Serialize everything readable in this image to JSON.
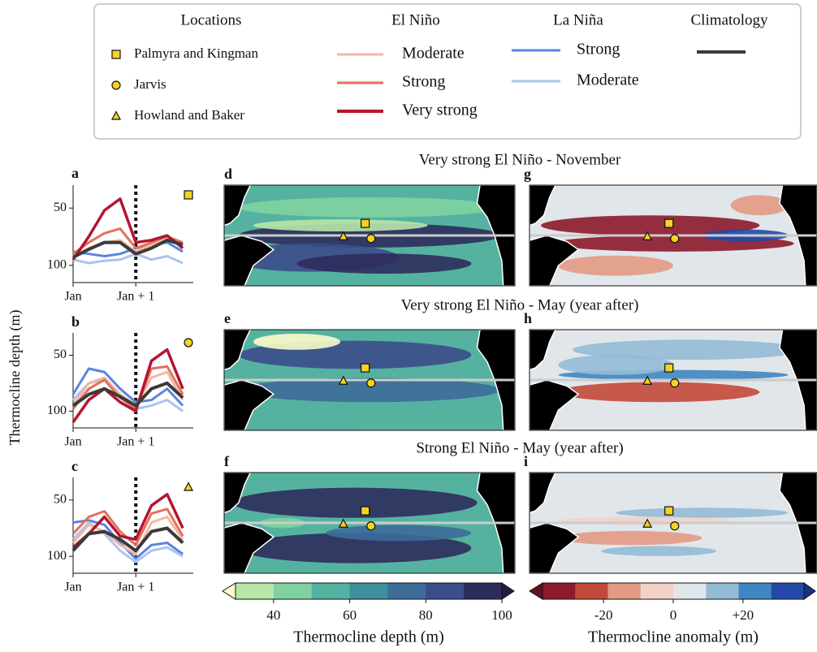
{
  "legend": {
    "locations_title": "Locations",
    "locations": [
      "Palmyra and Kingman",
      "Jarvis",
      "Howland and Baker"
    ],
    "el_nino_title": "El Niño",
    "el_nino": [
      {
        "name": "Moderate",
        "color": "#f2b8a0"
      },
      {
        "name": "Strong",
        "color": "#e2705a"
      },
      {
        "name": "Very strong",
        "color": "#b3162e"
      }
    ],
    "la_nina_title": "La Niña",
    "la_nina": [
      {
        "name": "Strong",
        "color": "#5a84df"
      },
      {
        "name": "Moderate",
        "color": "#a9c4f2"
      }
    ],
    "climatology_title": "Climatology",
    "climatology_color": "#3a3a3a"
  },
  "y_axis_label": "Thermocline depth (m)",
  "chart_data": [
    {
      "type": "line",
      "letter": "a",
      "marker": "square",
      "x": [
        0,
        3,
        6,
        9,
        12,
        15,
        18,
        21
      ],
      "xlim": [
        0,
        23
      ],
      "xticks": [
        {
          "value": 0,
          "label": "Jan"
        },
        {
          "value": 12,
          "label": "Jan + 1"
        }
      ],
      "ylim": [
        30,
        115
      ],
      "y_inverted": true,
      "yticks": [
        50,
        100
      ],
      "series": [
        {
          "values": [
            92,
            85,
            80,
            78,
            88,
            82,
            78,
            82
          ]
        },
        {
          "values": [
            90,
            80,
            72,
            68,
            85,
            80,
            75,
            80
          ]
        },
        {
          "values": [
            95,
            75,
            52,
            42,
            80,
            78,
            74,
            85
          ]
        },
        {
          "values": [
            88,
            90,
            92,
            90,
            85,
            82,
            80,
            88
          ]
        },
        {
          "values": [
            95,
            98,
            96,
            95,
            90,
            95,
            92,
            98
          ]
        },
        {
          "values": [
            93,
            86,
            80,
            80,
            90,
            85,
            78,
            82
          ]
        }
      ]
    },
    {
      "type": "line",
      "letter": "b",
      "marker": "circle",
      "x": [
        0,
        3,
        6,
        9,
        12,
        15,
        18,
        21
      ],
      "xlim": [
        0,
        23
      ],
      "xticks": [
        {
          "value": 0,
          "label": "Jan"
        },
        {
          "value": 12,
          "label": "Jan + 1"
        }
      ],
      "ylim": [
        30,
        115
      ],
      "y_inverted": true,
      "yticks": [
        50,
        100
      ],
      "series": [
        {
          "values": [
            95,
            75,
            70,
            85,
            95,
            70,
            65,
            90
          ]
        },
        {
          "values": [
            98,
            80,
            72,
            88,
            98,
            62,
            60,
            85
          ]
        },
        {
          "values": [
            110,
            90,
            80,
            92,
            100,
            55,
            45,
            80
          ]
        },
        {
          "values": [
            85,
            62,
            65,
            80,
            92,
            90,
            80,
            95
          ]
        },
        {
          "values": [
            90,
            75,
            72,
            88,
            98,
            95,
            90,
            100
          ]
        },
        {
          "values": [
            95,
            85,
            80,
            87,
            95,
            80,
            75,
            88
          ]
        }
      ]
    },
    {
      "type": "line",
      "letter": "c",
      "marker": "triangle",
      "x": [
        0,
        3,
        6,
        9,
        12,
        15,
        18,
        21
      ],
      "xlim": [
        0,
        23
      ],
      "xticks": [
        {
          "value": 0,
          "label": "Jan"
        },
        {
          "value": 12,
          "label": "Jan + 1"
        }
      ],
      "ylim": [
        30,
        115
      ],
      "y_inverted": true,
      "yticks": [
        50,
        100
      ],
      "series": [
        {
          "values": [
            88,
            72,
            78,
            90,
            98,
            70,
            65,
            85
          ]
        },
        {
          "values": [
            80,
            65,
            60,
            78,
            90,
            62,
            58,
            82
          ]
        },
        {
          "values": [
            92,
            80,
            65,
            82,
            85,
            55,
            45,
            75
          ]
        },
        {
          "values": [
            70,
            68,
            72,
            88,
            102,
            90,
            88,
            98
          ]
        },
        {
          "values": [
            85,
            70,
            80,
            95,
            105,
            95,
            92,
            100
          ]
        },
        {
          "values": [
            95,
            80,
            78,
            85,
            95,
            78,
            75,
            88
          ]
        }
      ]
    }
  ],
  "maps": {
    "row_titles": [
      "Very strong El Niño - November",
      "Very strong El Niño - May (year after)",
      "Strong El Niño - May (year after)"
    ],
    "depth_letters": [
      "d",
      "e",
      "f"
    ],
    "anomaly_letters": [
      "g",
      "h",
      "i"
    ]
  },
  "colorbars": [
    {
      "label": "Thermocline depth (m)",
      "lim": [
        30,
        100
      ],
      "ticks": [
        40,
        60,
        80,
        100
      ],
      "colors": [
        "#b8e6a9",
        "#80d1a0",
        "#56b2a0",
        "#3e8f9c",
        "#3d6c98",
        "#3b4c8a",
        "#2e2c5c"
      ],
      "under": "#fbfbc8",
      "over": "#2a1a3f"
    },
    {
      "label": "Thermocline anomaly (m)",
      "lim": [
        -37.5,
        37.5
      ],
      "ticks": [
        -20,
        0,
        {
          "value": 20,
          "label": "+20"
        }
      ],
      "colors": [
        "#8c1a2b",
        "#c4493a",
        "#e39a84",
        "#f2d2c6",
        "#e1e6ea",
        "#93bbd6",
        "#3f86c2",
        "#2249a8"
      ],
      "under": "#6a0f22",
      "over": "#1a2f8a"
    }
  ]
}
